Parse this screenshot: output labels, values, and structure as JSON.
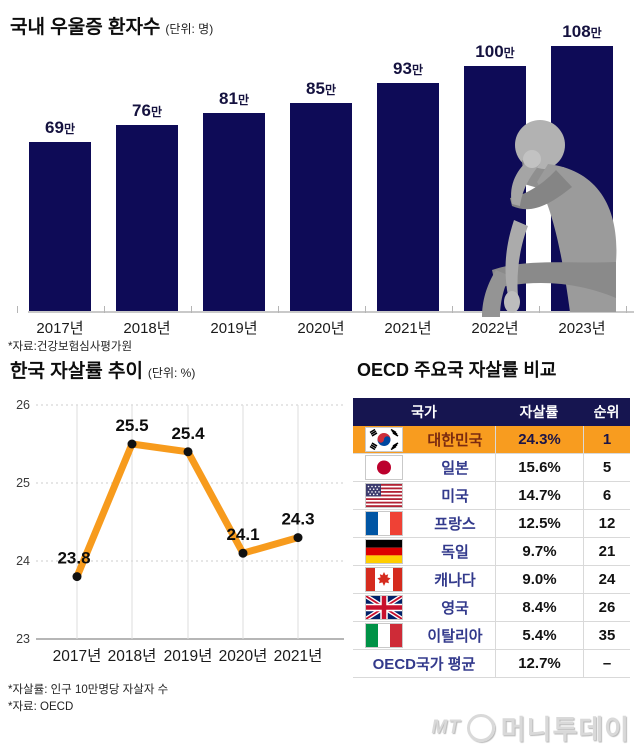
{
  "colors": {
    "bar_navy": "#0e0b57",
    "header_navy": "#161550",
    "highlight_orange": "#f89c1f",
    "line_orange": "#f79b1d",
    "dot_black": "#111111",
    "country_blue": "#333a8c",
    "grid_gray": "#cccccc",
    "logo_gray": "#d9d9d9"
  },
  "chart_data": [
    {
      "type": "bar",
      "title": "국내 우울증 환자수",
      "unit_label": "(단위: 명)",
      "categories": [
        "2017년",
        "2018년",
        "2019년",
        "2020년",
        "2021년",
        "2022년",
        "2023년"
      ],
      "values": [
        69,
        76,
        81,
        85,
        93,
        100,
        108
      ],
      "value_suffix": "만",
      "ylabel": "",
      "xlabel": "",
      "ylim": [
        0,
        115
      ],
      "source": "*자료:건강보험심사평가원",
      "bar_color": "#0e0b57"
    },
    {
      "type": "line",
      "title": "한국 자살률 추이",
      "unit_label": "(단위: %)",
      "categories": [
        "2017년",
        "2018년",
        "2019년",
        "2020년",
        "2021년"
      ],
      "values": [
        23.8,
        25.5,
        25.4,
        24.1,
        24.3
      ],
      "yticks": [
        26,
        25,
        24,
        23
      ],
      "ylim": [
        23,
        26
      ],
      "grid": true,
      "line_color": "#f79b1d",
      "footnotes": [
        "*자살률: 인구 10만명당 자살자 수",
        "*자료: OECD"
      ]
    },
    {
      "type": "table",
      "title": "OECD 주요국 자살률 비교",
      "columns": [
        "국가",
        "자살률",
        "순위"
      ],
      "rows": [
        {
          "flag": "kr",
          "flag_name": "south-korea",
          "country": "대한민국",
          "rate": "24.3%",
          "rank": "1",
          "highlight": true
        },
        {
          "flag": "jp",
          "flag_name": "japan",
          "country": "일본",
          "rate": "15.6%",
          "rank": "5",
          "highlight": false
        },
        {
          "flag": "us",
          "flag_name": "usa",
          "country": "미국",
          "rate": "14.7%",
          "rank": "6",
          "highlight": false
        },
        {
          "flag": "fr",
          "flag_name": "france",
          "country": "프랑스",
          "rate": "12.5%",
          "rank": "12",
          "highlight": false
        },
        {
          "flag": "de",
          "flag_name": "germany",
          "country": "독일",
          "rate": "9.7%",
          "rank": "21",
          "highlight": false
        },
        {
          "flag": "ca",
          "flag_name": "canada",
          "country": "캐나다",
          "rate": "9.0%",
          "rank": "24",
          "highlight": false
        },
        {
          "flag": "gb",
          "flag_name": "uk",
          "country": "영국",
          "rate": "8.4%",
          "rank": "26",
          "highlight": false
        },
        {
          "flag": "it",
          "flag_name": "italy",
          "country": "이탈리아",
          "rate": "5.4%",
          "rank": "35",
          "highlight": false
        },
        {
          "flag": null,
          "flag_name": null,
          "country": "OECD국가 평균",
          "rate": "12.7%",
          "rank": "–",
          "highlight": false
        }
      ]
    }
  ],
  "footer": {
    "logo_mt": "MT",
    "logo_name": "머니투데이"
  }
}
